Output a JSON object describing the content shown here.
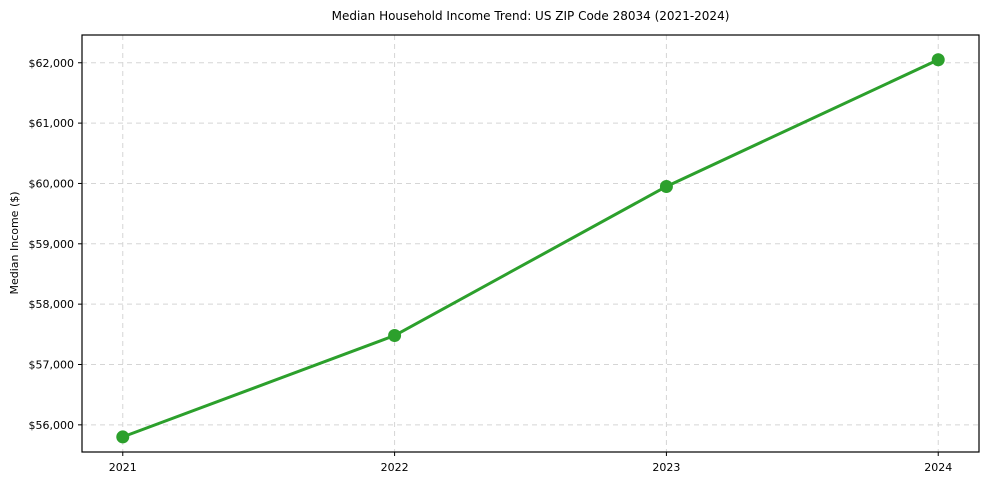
{
  "chart_data": {
    "type": "line",
    "title": "Median Household Income Trend: US ZIP Code 28034 (2021-2024)",
    "xlabel": "",
    "ylabel": "Median Income ($)",
    "x": [
      2021,
      2022,
      2023,
      2024
    ],
    "x_tick_labels": [
      "2021",
      "2022",
      "2023",
      "2024"
    ],
    "series": [
      {
        "name": "Median Household Income",
        "values": [
          55800,
          57480,
          59950,
          62050
        ]
      }
    ],
    "y_ticks": [
      56000,
      57000,
      58000,
      59000,
      60000,
      61000,
      62000
    ],
    "y_tick_labels": [
      "$56,000",
      "$57,000",
      "$58,000",
      "$59,000",
      "$60,000",
      "$61,000",
      "$62,000"
    ],
    "xlim": [
      2020.85,
      2024.15
    ],
    "ylim": [
      55550,
      62460
    ],
    "grid": "both-dashed",
    "legend": "none",
    "colors": {
      "line": "#2ca02c",
      "marker": "#2ca02c",
      "grid": "#d5d5d5",
      "spine": "#000000",
      "background": "#ffffff",
      "text": "#000000"
    }
  }
}
